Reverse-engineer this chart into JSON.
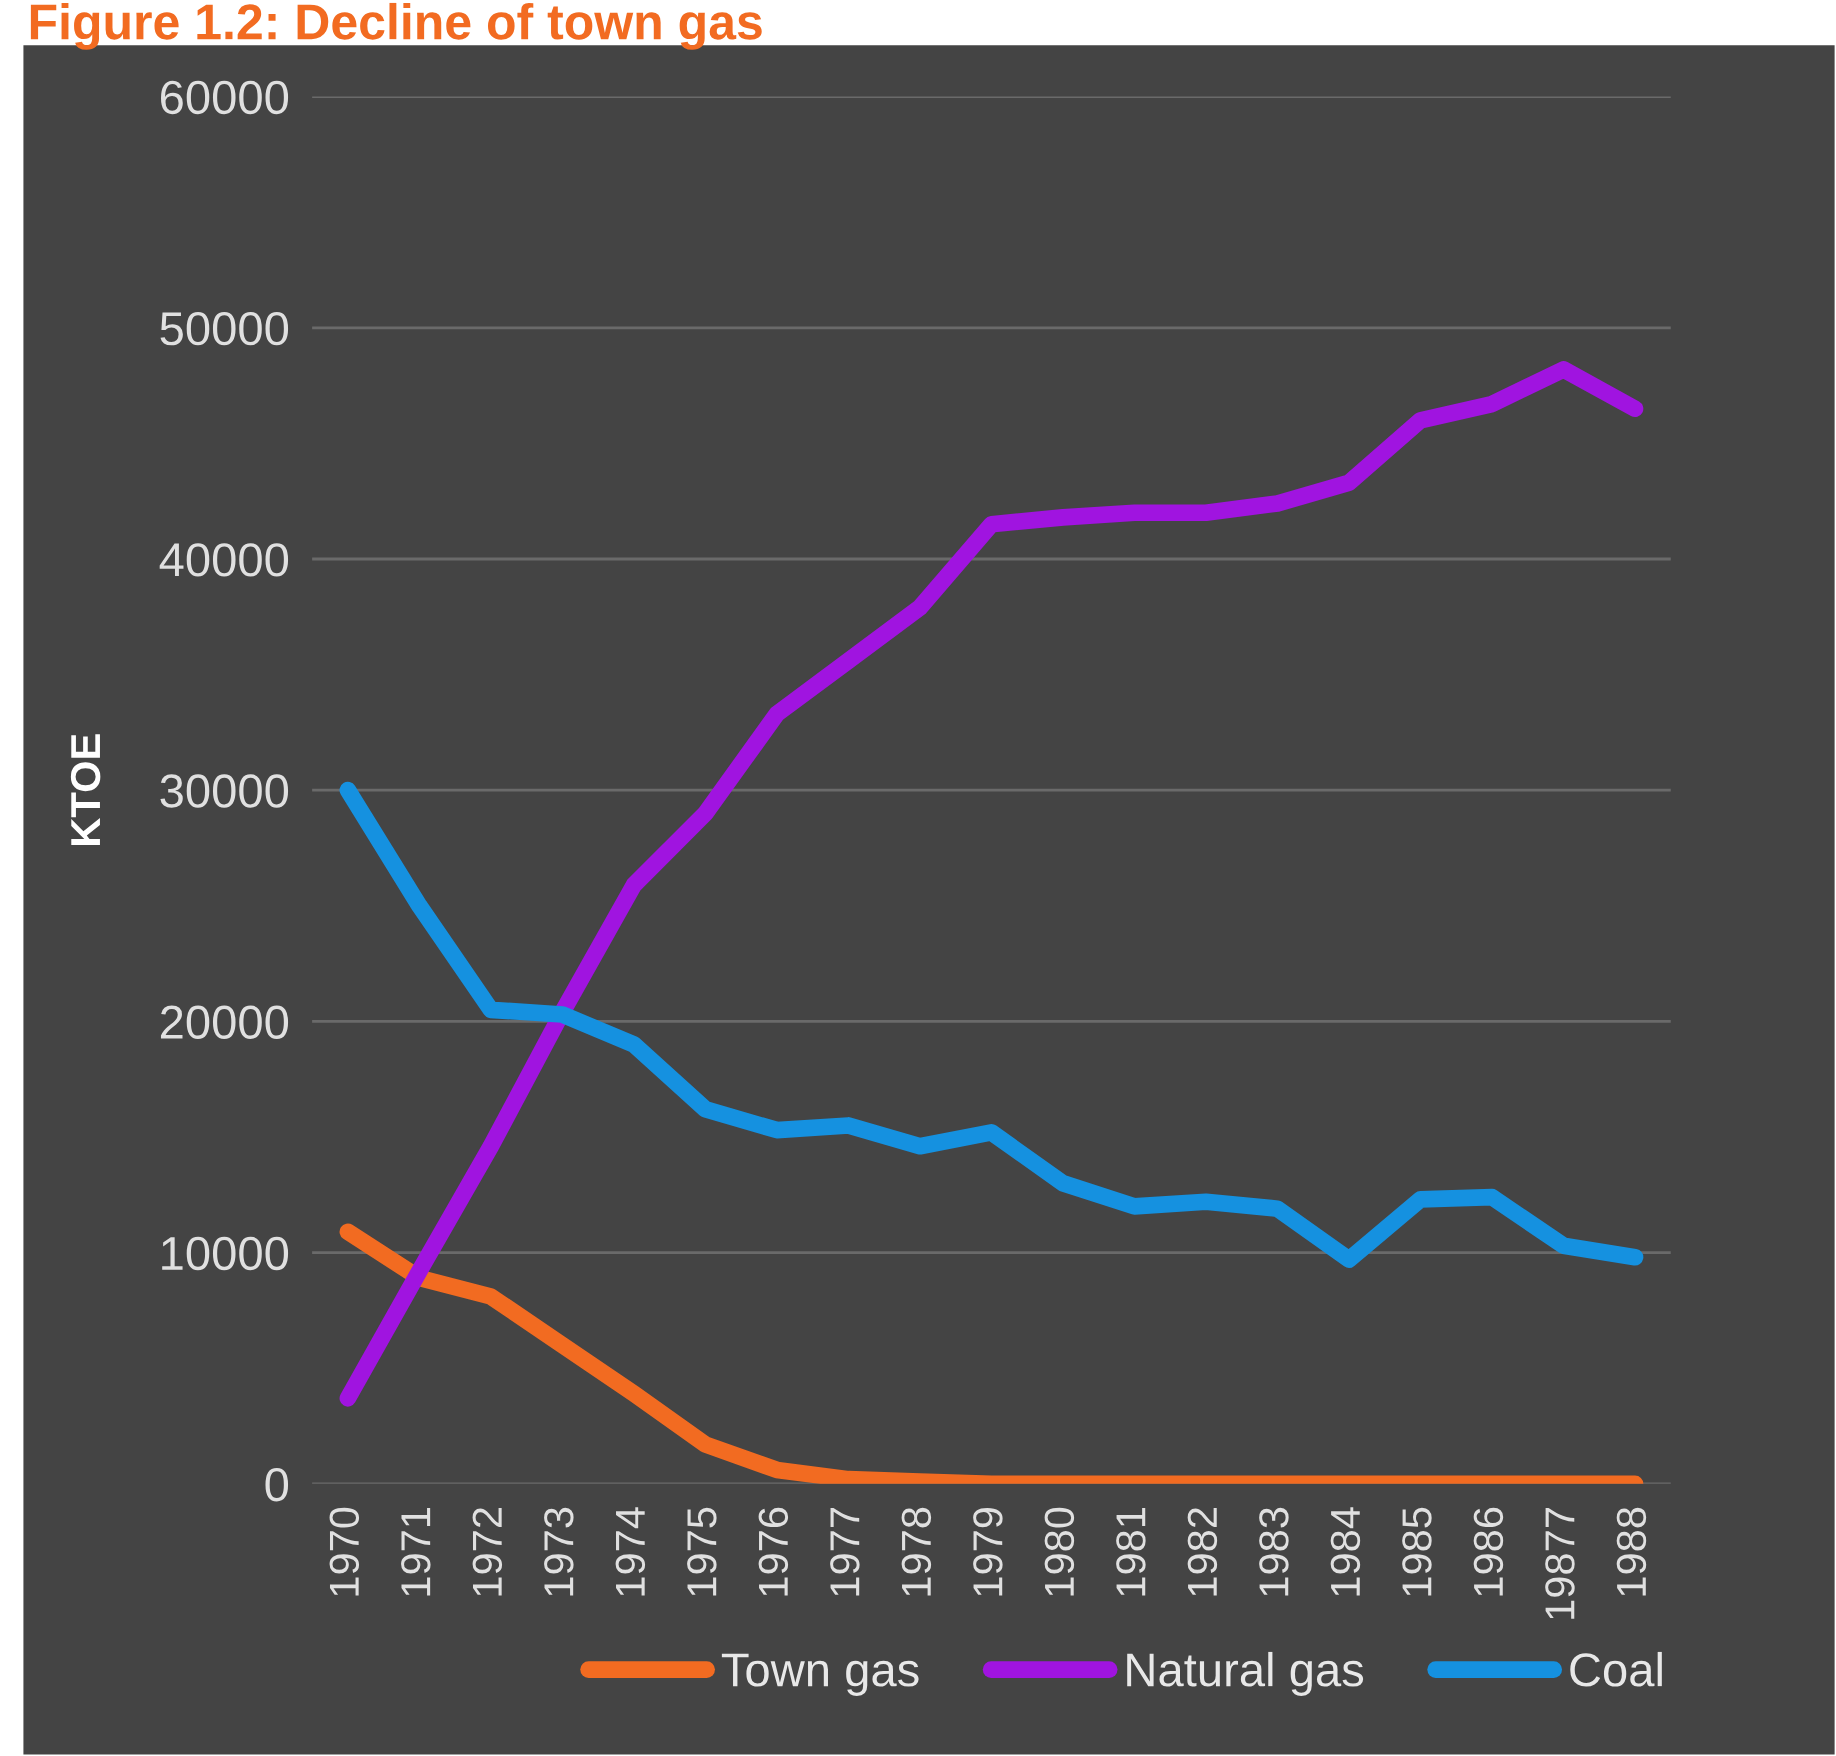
{
  "chart_data": {
    "type": "line",
    "title": "Figure 1.2: Decline of town gas",
    "ylabel": "KTOE",
    "categories": [
      "1970",
      "1971",
      "1972",
      "1973",
      "1974",
      "1975",
      "1976",
      "1977",
      "1978",
      "1979",
      "1980",
      "1981",
      "1982",
      "1983",
      "1984",
      "1985",
      "1986",
      "19877",
      "1988"
    ],
    "series": [
      {
        "name": "Town gas",
        "color": "#f26b21",
        "values": [
          10900,
          8900,
          8100,
          6000,
          3900,
          1700,
          600,
          200,
          100,
          0,
          0,
          0,
          0,
          0,
          0,
          0,
          0,
          0,
          0
        ]
      },
      {
        "name": "Natural gas",
        "color": "#a014e0",
        "values": [
          3700,
          9200,
          14600,
          20400,
          25900,
          29000,
          33300,
          35600,
          37900,
          41500,
          41800,
          42000,
          42000,
          42400,
          43300,
          46000,
          46700,
          48200,
          46500
        ]
      },
      {
        "name": "Coal",
        "color": "#1591e0",
        "values": [
          30000,
          25000,
          20500,
          20300,
          19000,
          16200,
          15300,
          15500,
          14600,
          15200,
          13000,
          12000,
          12200,
          11900,
          9700,
          12300,
          12400,
          10300,
          9800
        ]
      }
    ],
    "ylim": [
      0,
      60000
    ],
    "yticks": [
      0,
      10000,
      20000,
      30000,
      40000,
      50000,
      60000
    ],
    "grid": "y",
    "legend": "bottom",
    "line_style": "solid",
    "marker": "none"
  }
}
